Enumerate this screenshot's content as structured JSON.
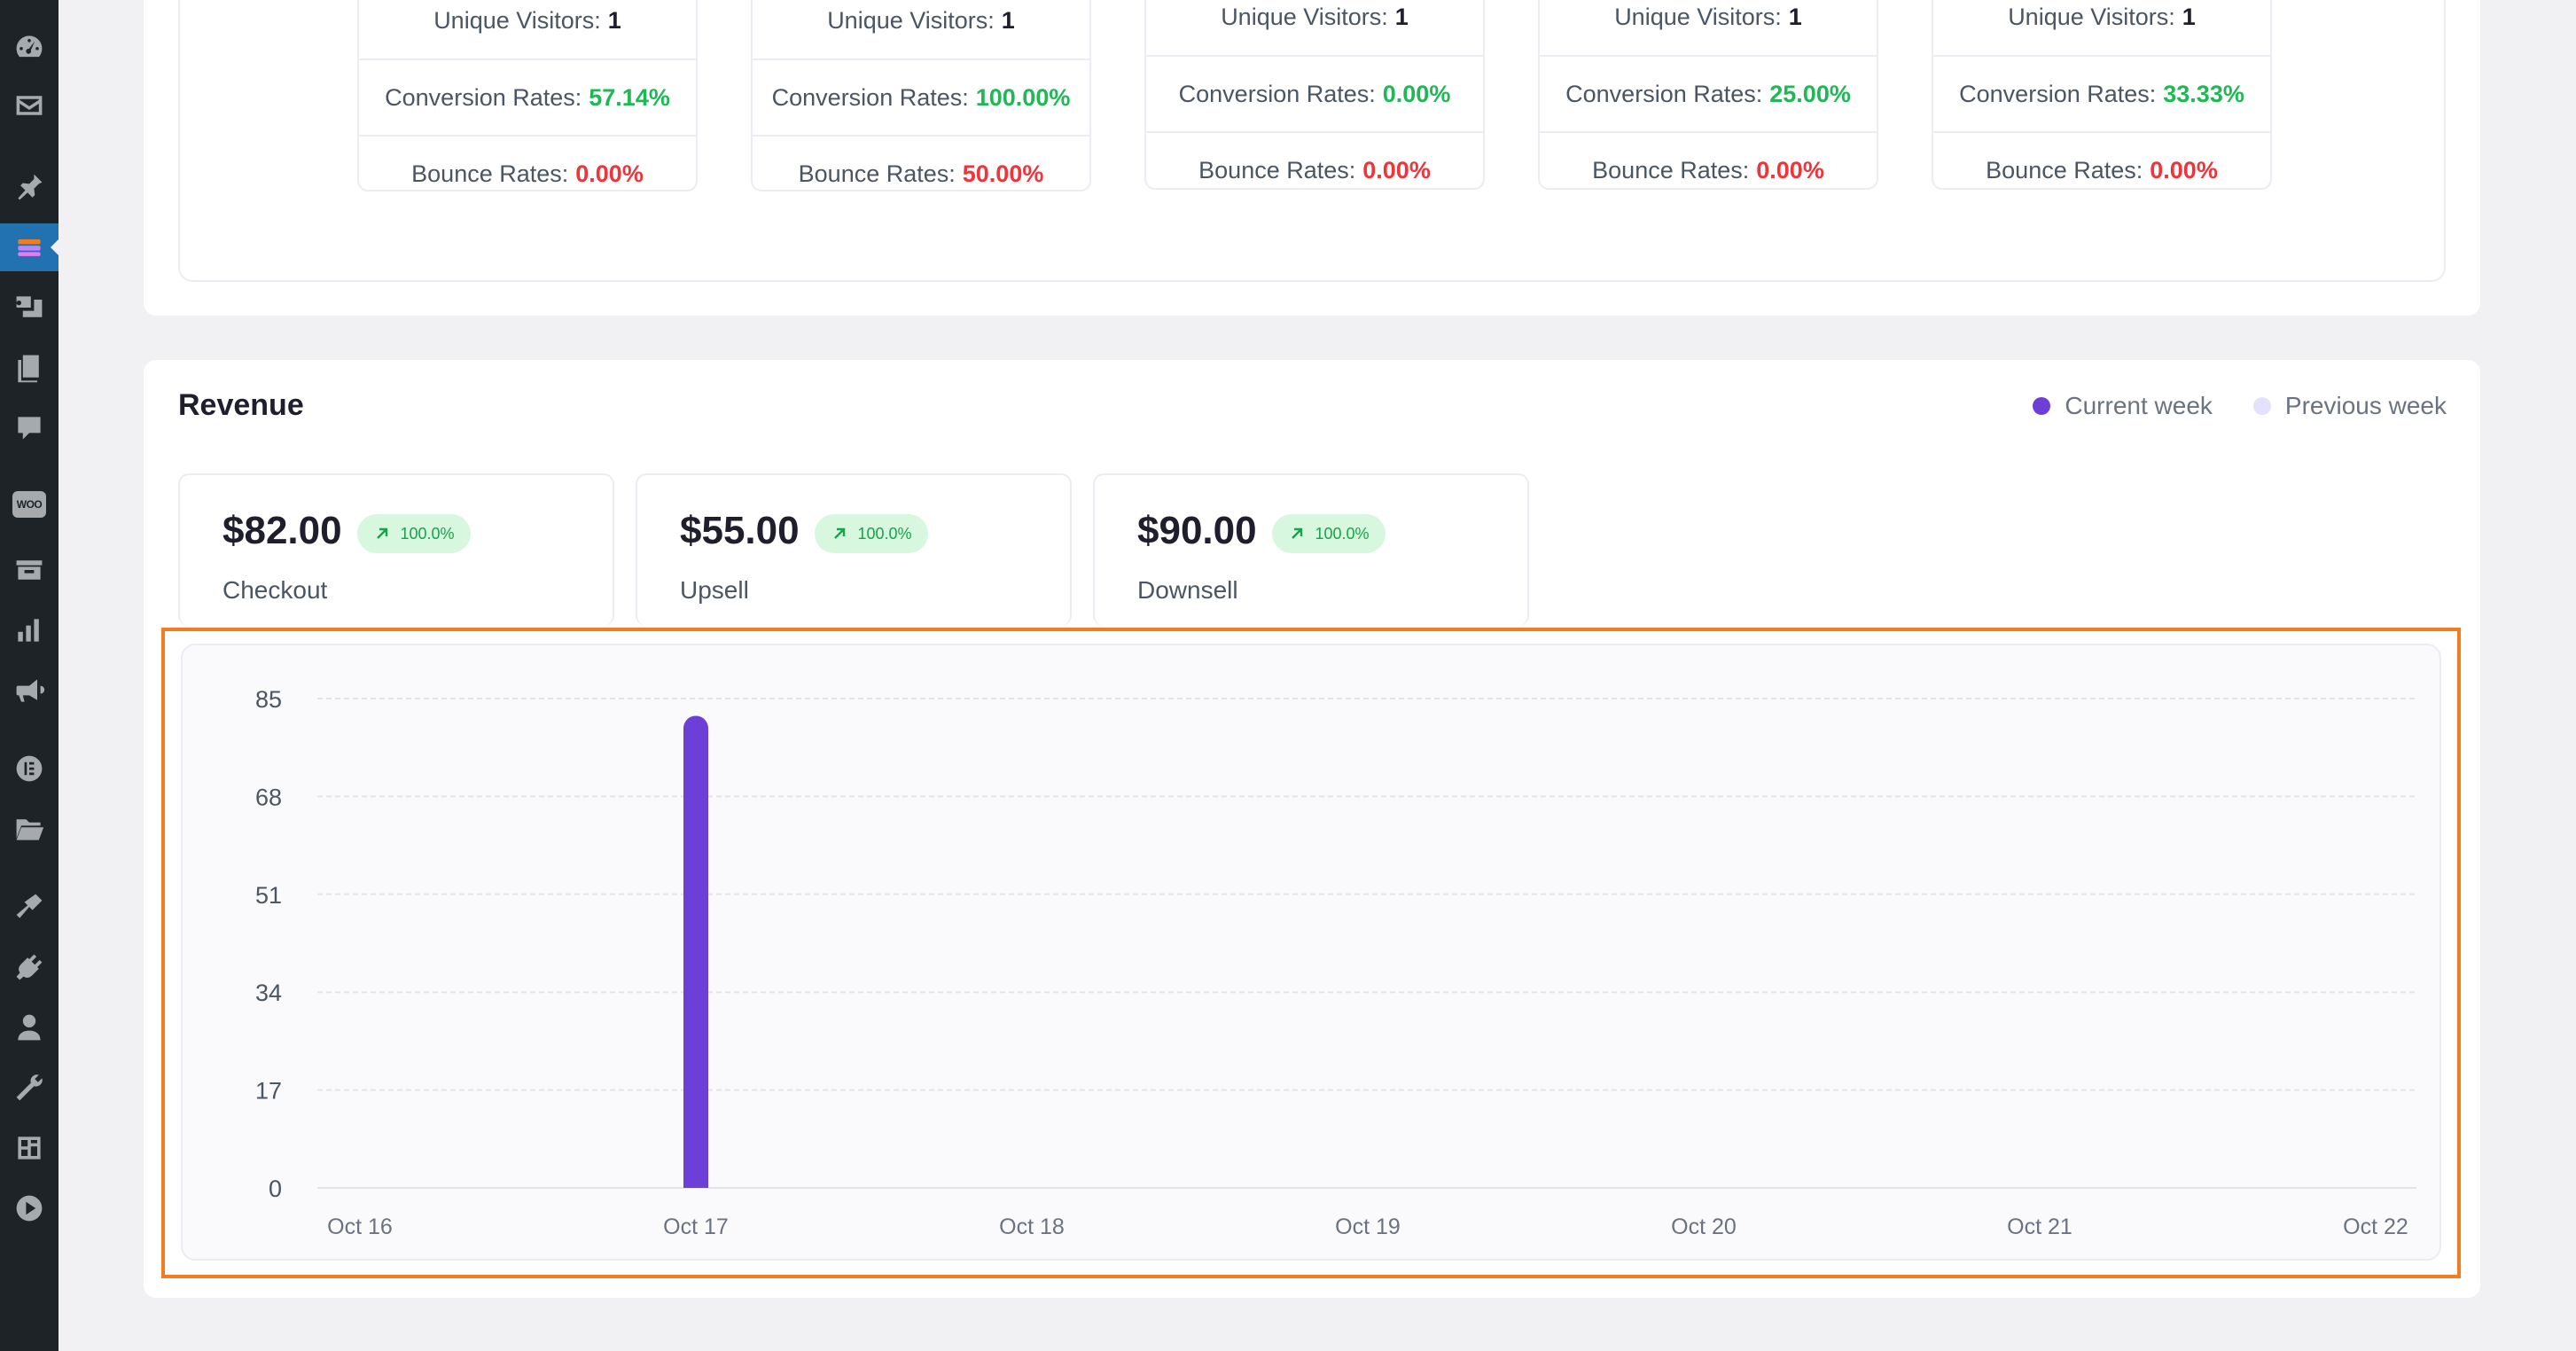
{
  "sidebar": {
    "items": [
      {
        "icon": "dashboard-icon"
      },
      {
        "icon": "mail-icon"
      },
      {
        "icon": "pin-icon"
      },
      {
        "icon": "funnel-plugin-icon",
        "active": true
      },
      {
        "icon": "media-icon"
      },
      {
        "icon": "pages-icon"
      },
      {
        "icon": "comments-icon"
      },
      {
        "icon": "woocommerce-icon",
        "text": "WOO"
      },
      {
        "icon": "products-icon"
      },
      {
        "icon": "analytics-icon"
      },
      {
        "icon": "marketing-icon"
      },
      {
        "icon": "elementor-icon"
      },
      {
        "icon": "templates-folder-icon"
      },
      {
        "icon": "appearance-icon"
      },
      {
        "icon": "plugins-icon"
      },
      {
        "icon": "users-icon"
      },
      {
        "icon": "tools-icon"
      },
      {
        "icon": "settings-icon"
      },
      {
        "icon": "play-icon"
      }
    ]
  },
  "stats": {
    "labels": {
      "visitors": "Unique Visitors:",
      "conversion": "Conversion Rates:",
      "bounce": "Bounce Rates:"
    },
    "cards": [
      {
        "visitors": "1",
        "conversion": "57.14%",
        "bounce": "0.00%"
      },
      {
        "visitors": "1",
        "conversion": "100.00%",
        "bounce": "50.00%"
      },
      {
        "visitors": "1",
        "conversion": "0.00%",
        "bounce": "0.00%"
      },
      {
        "visitors": "1",
        "conversion": "25.00%",
        "bounce": "0.00%"
      },
      {
        "visitors": "1",
        "conversion": "33.33%",
        "bounce": "0.00%"
      }
    ]
  },
  "revenue": {
    "title": "Revenue",
    "legend": {
      "current": "Current week",
      "previous": "Previous week"
    },
    "colors": {
      "current": "#6d3fd6",
      "previous": "#e4e1fb"
    },
    "cards": [
      {
        "amount": "$82.00",
        "change": "100.0%",
        "label": "Checkout"
      },
      {
        "amount": "$55.00",
        "change": "100.0%",
        "label": "Upsell"
      },
      {
        "amount": "$90.00",
        "change": "100.0%",
        "label": "Downsell"
      }
    ]
  },
  "chart_data": {
    "type": "bar",
    "categories": [
      "Oct 16",
      "Oct 17",
      "Oct 18",
      "Oct 19",
      "Oct 20",
      "Oct 21",
      "Oct 22"
    ],
    "series": [
      {
        "name": "Current week",
        "values": [
          0,
          82,
          0,
          0,
          0,
          0,
          0
        ]
      },
      {
        "name": "Previous week",
        "values": [
          0,
          0,
          0,
          0,
          0,
          0,
          0
        ]
      }
    ],
    "yticks": [
      0,
      17,
      34,
      51,
      68,
      85
    ],
    "ylim": [
      0,
      85
    ],
    "grid": true,
    "legend": "top-right"
  }
}
